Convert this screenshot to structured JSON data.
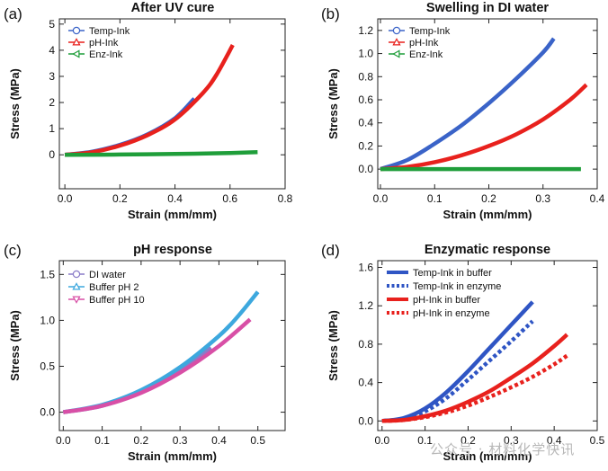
{
  "watermark": "公众号 · 材料化学快讯",
  "chart_data": [
    {
      "type": "line",
      "panel_label": "(a)",
      "title": "After UV cure",
      "xlabel": "Strain (mm/mm)",
      "ylabel": "Stress (MPa)",
      "xlim": [
        -0.02,
        0.8
      ],
      "ylim": [
        -1.3,
        5.2
      ],
      "xticks": [
        0.0,
        0.2,
        0.4,
        0.6,
        0.8
      ],
      "xtick_labels": [
        "0.0",
        "0.2",
        "0.4",
        "0.6",
        "0.8"
      ],
      "yticks": [
        0,
        1,
        2,
        3,
        4,
        5
      ],
      "ytick_labels": [
        "0",
        "1",
        "2",
        "3",
        "4",
        "5"
      ],
      "legend_position": "top-left",
      "series": [
        {
          "name": "Temp-Ink",
          "color": "#3a63c8",
          "marker": "circle",
          "dashed": false,
          "x": [
            0,
            0.1,
            0.2,
            0.3,
            0.4,
            0.47
          ],
          "y": [
            0,
            0.12,
            0.38,
            0.78,
            1.4,
            2.15
          ]
        },
        {
          "name": "pH-Ink",
          "color": "#e8211d",
          "marker": "triangle",
          "dashed": false,
          "x": [
            0,
            0.1,
            0.2,
            0.3,
            0.4,
            0.5,
            0.55,
            0.61
          ],
          "y": [
            0,
            0.1,
            0.35,
            0.75,
            1.35,
            2.35,
            3.05,
            4.2
          ]
        },
        {
          "name": "Enz-Ink",
          "color": "#1f9e3a",
          "marker": "triangle-left",
          "dashed": false,
          "x": [
            0,
            0.2,
            0.4,
            0.6,
            0.7
          ],
          "y": [
            0,
            0.01,
            0.03,
            0.07,
            0.1
          ]
        }
      ]
    },
    {
      "type": "line",
      "panel_label": "(b)",
      "title": "Swelling in DI water",
      "xlabel": "Strain (mm/mm)",
      "ylabel": "Stress (MPa)",
      "xlim": [
        -0.005,
        0.4
      ],
      "ylim": [
        -0.17,
        1.3
      ],
      "xticks": [
        0.0,
        0.1,
        0.2,
        0.3,
        0.4
      ],
      "xtick_labels": [
        "0.0",
        "0.1",
        "0.2",
        "0.3",
        "0.4"
      ],
      "yticks": [
        0.0,
        0.2,
        0.4,
        0.6,
        0.8,
        1.0,
        1.2
      ],
      "ytick_labels": [
        "0.0",
        "0.2",
        "0.4",
        "0.6",
        "0.8",
        "1.0",
        "1.2"
      ],
      "legend_position": "top-left",
      "series": [
        {
          "name": "Temp-Ink",
          "color": "#3a63c8",
          "marker": "circle",
          "dashed": false,
          "x": [
            0,
            0.05,
            0.1,
            0.15,
            0.2,
            0.25,
            0.3,
            0.32
          ],
          "y": [
            0,
            0.08,
            0.22,
            0.38,
            0.57,
            0.78,
            1.01,
            1.13
          ]
        },
        {
          "name": "pH-Ink",
          "color": "#e8211d",
          "marker": "triangle",
          "dashed": false,
          "x": [
            0,
            0.05,
            0.1,
            0.15,
            0.2,
            0.25,
            0.3,
            0.35,
            0.38
          ],
          "y": [
            0,
            0.02,
            0.06,
            0.12,
            0.2,
            0.3,
            0.43,
            0.6,
            0.73
          ]
        },
        {
          "name": "Enz-Ink",
          "color": "#1f9e3a",
          "marker": "triangle-left",
          "dashed": false,
          "x": [
            0,
            0.1,
            0.2,
            0.3,
            0.37
          ],
          "y": [
            0,
            0.0,
            0.0,
            0.0,
            0.0
          ]
        }
      ]
    },
    {
      "type": "line",
      "panel_label": "(c)",
      "title": "pH response",
      "xlabel": "Strain (mm/mm)",
      "ylabel": "Stress (MPa)",
      "xlim": [
        -0.01,
        0.57
      ],
      "ylim": [
        -0.2,
        1.65
      ],
      "xticks": [
        0.0,
        0.1,
        0.2,
        0.3,
        0.4,
        0.5
      ],
      "xtick_labels": [
        "0.0",
        "0.1",
        "0.2",
        "0.3",
        "0.4",
        "0.5"
      ],
      "yticks": [
        0.0,
        0.5,
        1.0,
        1.5
      ],
      "ytick_labels": [
        "0.0",
        "0.5",
        "1.0",
        "1.5"
      ],
      "legend_position": "top-left",
      "series": [
        {
          "name": "DI water",
          "color": "#8a7cc8",
          "marker": "circle",
          "dashed": false,
          "x": [
            0,
            0.1,
            0.2,
            0.3,
            0.38
          ],
          "y": [
            0,
            0.07,
            0.22,
            0.45,
            0.7
          ]
        },
        {
          "name": "Buffer pH 2",
          "color": "#3da8de",
          "marker": "triangle",
          "dashed": false,
          "x": [
            0,
            0.1,
            0.2,
            0.3,
            0.4,
            0.45,
            0.5
          ],
          "y": [
            0,
            0.08,
            0.24,
            0.49,
            0.83,
            1.05,
            1.31
          ]
        },
        {
          "name": "Buffer pH 10",
          "color": "#d84fa6",
          "marker": "triangle-down",
          "dashed": false,
          "x": [
            0,
            0.1,
            0.2,
            0.3,
            0.4,
            0.48
          ],
          "y": [
            0,
            0.07,
            0.21,
            0.43,
            0.72,
            1.01
          ]
        }
      ]
    },
    {
      "type": "line",
      "panel_label": "(d)",
      "title": "Enzymatic response",
      "xlabel": "Strain (mm/mm)",
      "ylabel": "Stress (MPa)",
      "xlim": [
        -0.01,
        0.5
      ],
      "ylim": [
        -0.1,
        1.67
      ],
      "xticks": [
        0.0,
        0.1,
        0.2,
        0.3,
        0.4,
        0.5
      ],
      "xtick_labels": [
        "0.0",
        "0.1",
        "0.2",
        "0.3",
        "0.4",
        "0.5"
      ],
      "yticks": [
        0.0,
        0.4,
        0.8,
        1.2,
        1.6
      ],
      "ytick_labels": [
        "0.0",
        "0.4",
        "0.8",
        "1.2",
        "1.6"
      ],
      "legend_position": "top-left",
      "series": [
        {
          "name": "Temp-Ink in buffer",
          "color": "#2f55c4",
          "marker": "none",
          "dashed": false,
          "x": [
            0,
            0.05,
            0.1,
            0.15,
            0.2,
            0.25,
            0.3,
            0.35
          ],
          "y": [
            0,
            0.03,
            0.13,
            0.3,
            0.52,
            0.76,
            1.0,
            1.24
          ]
        },
        {
          "name": "Temp-Ink in enzyme",
          "color": "#2f55c4",
          "marker": "none",
          "dashed": true,
          "x": [
            0,
            0.05,
            0.1,
            0.15,
            0.2,
            0.25,
            0.3,
            0.35
          ],
          "y": [
            0,
            0.02,
            0.1,
            0.24,
            0.43,
            0.63,
            0.83,
            1.04
          ]
        },
        {
          "name": "pH-Ink in buffer",
          "color": "#e8211d",
          "marker": "none",
          "dashed": false,
          "x": [
            0,
            0.05,
            0.1,
            0.15,
            0.2,
            0.25,
            0.3,
            0.35,
            0.4,
            0.43
          ],
          "y": [
            0,
            0.01,
            0.05,
            0.11,
            0.2,
            0.31,
            0.45,
            0.6,
            0.78,
            0.9
          ]
        },
        {
          "name": "pH-Ink in enzyme",
          "color": "#e8211d",
          "marker": "none",
          "dashed": true,
          "x": [
            0,
            0.05,
            0.1,
            0.15,
            0.2,
            0.25,
            0.3,
            0.35,
            0.4,
            0.43
          ],
          "y": [
            0,
            0.01,
            0.04,
            0.09,
            0.16,
            0.25,
            0.35,
            0.46,
            0.59,
            0.68
          ]
        }
      ]
    }
  ]
}
